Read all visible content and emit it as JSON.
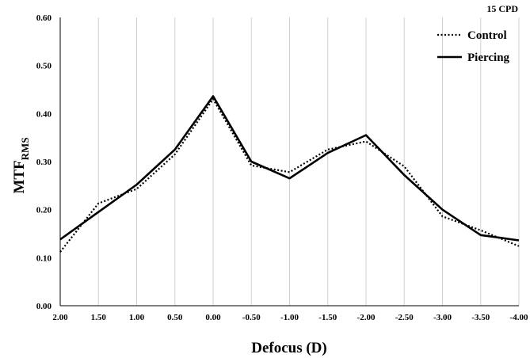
{
  "chart_data": {
    "type": "line",
    "corner_label": "15 CPD",
    "xlabel": "Defocus (D)",
    "ylabel_main": "MTF",
    "ylabel_sub": "RMS",
    "x": [
      "2.00",
      "1.50",
      "1.00",
      "0.50",
      "0.00",
      "-0.50",
      "-1.00",
      "-1.50",
      "-2.00",
      "-2.50",
      "-3.00",
      "-3.50",
      "-4.00"
    ],
    "yticks": [
      "0.00",
      "0.10",
      "0.20",
      "0.30",
      "0.40",
      "0.50",
      "0.60"
    ],
    "ylim": [
      0,
      0.6
    ],
    "grid": "vertical",
    "legend_position": "top-right",
    "series": [
      {
        "name": "Control",
        "style": "dotted",
        "color": "#000000",
        "values": [
          0.112,
          0.213,
          0.243,
          0.315,
          0.43,
          0.292,
          0.278,
          0.325,
          0.342,
          0.29,
          0.186,
          0.157,
          0.124
        ]
      },
      {
        "name": "Piercing",
        "style": "solid",
        "color": "#000000",
        "values": [
          0.138,
          0.195,
          0.252,
          0.325,
          0.436,
          0.3,
          0.265,
          0.318,
          0.355,
          0.272,
          0.2,
          0.147,
          0.136
        ]
      }
    ]
  }
}
